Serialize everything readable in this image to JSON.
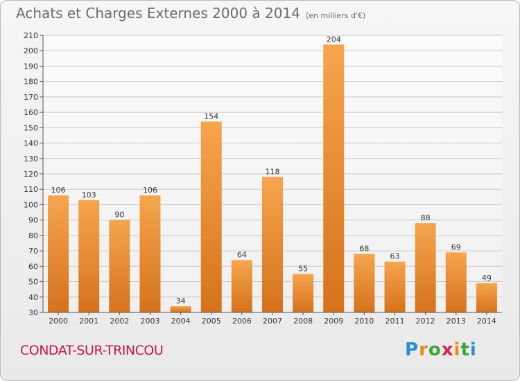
{
  "header": {
    "title": "Achats et Charges Externes 2000 à 2014",
    "unit": "(en milliers d'€)"
  },
  "footer": {
    "commune": "CONDAT-SUR-TRINCOU",
    "logo": "Proxiti"
  },
  "colors": {
    "bar_light": "#f6a54e",
    "bar_dark": "#d5721b",
    "grid": "#c8c8c8",
    "axis_text": "#333333",
    "commune": "#c0194a"
  },
  "chart_data": {
    "type": "bar",
    "title": "Achats et Charges Externes 2000 à 2014",
    "subtitle": "(en milliers d'€)",
    "xlabel": "",
    "ylabel": "",
    "categories": [
      "2000",
      "2001",
      "2002",
      "2003",
      "2004",
      "2005",
      "2006",
      "2007",
      "2008",
      "2009",
      "2010",
      "2011",
      "2012",
      "2013",
      "2014"
    ],
    "values": [
      106,
      103,
      90,
      106,
      34,
      154,
      64,
      118,
      55,
      204,
      68,
      63,
      88,
      69,
      49
    ],
    "ylim": [
      30,
      210
    ],
    "yticks": [
      30,
      40,
      50,
      60,
      70,
      80,
      90,
      100,
      110,
      120,
      130,
      140,
      150,
      160,
      170,
      180,
      190,
      200,
      210
    ],
    "grid": true,
    "legend": "none"
  }
}
